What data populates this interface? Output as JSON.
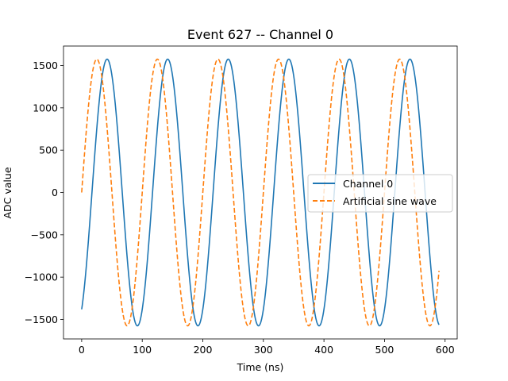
{
  "chart_data": {
    "type": "line",
    "title": "Event 627 -- Channel 0",
    "xlabel": "Time (ns)",
    "ylabel": "ADC value",
    "xlim": [
      -30,
      620
    ],
    "ylim": [
      -1730,
      1730
    ],
    "xticks": [
      0,
      100,
      200,
      300,
      400,
      500,
      600
    ],
    "xtick_labels": [
      "0",
      "100",
      "200",
      "300",
      "400",
      "500",
      "600"
    ],
    "yticks": [
      -1500,
      -1000,
      -500,
      0,
      500,
      1000,
      1500
    ],
    "ytick_labels": [
      "−1500",
      "−1000",
      "−500",
      "0",
      "500",
      "1000",
      "1500"
    ],
    "grid": false,
    "legend_position": "center-right",
    "x_start": 0,
    "x_end": 590,
    "series": [
      {
        "name": "Channel 0",
        "style": "solid",
        "color": "#1f77b4",
        "amplitude": 1575,
        "period_ns": 100,
        "peak_times_ns": [
          42,
          142,
          242,
          342,
          442,
          542
        ],
        "trough_times_ns": [
          92,
          192,
          292,
          392,
          492
        ],
        "y_at_start": -1390,
        "y_at_end": -1530
      },
      {
        "name": "Artificial sine wave",
        "style": "dashed",
        "color": "#ff7f0e",
        "amplitude": 1575,
        "period_ns": 100,
        "peak_times_ns": [
          25,
          125,
          225,
          325,
          425,
          525
        ],
        "trough_times_ns": [
          75,
          175,
          275,
          375,
          475,
          575
        ],
        "y_at_start": 0,
        "y_at_end": -930
      }
    ]
  }
}
